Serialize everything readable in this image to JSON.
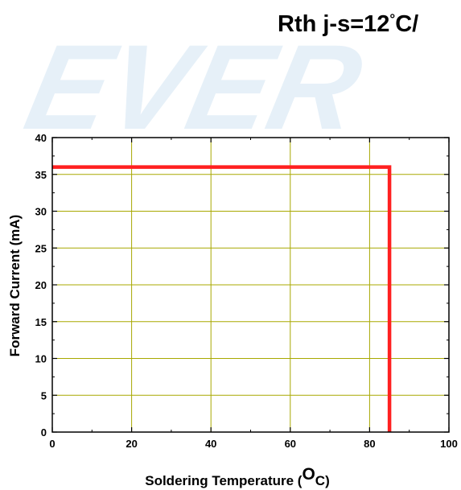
{
  "watermark": {
    "text": "EVER",
    "color": "#e6f0f8"
  },
  "header": {
    "title_main": "Rth j-s=12",
    "title_degree": "°",
    "title_tail": "C/"
  },
  "chart_data": {
    "type": "line",
    "title": "Rth j-s=12°C/",
    "xlabel_main": "Soldering Temperature (",
    "xlabel_sup": "O",
    "xlabel_tail": "C)",
    "ylabel": "Forward Current (mA)",
    "xlim": [
      0,
      100
    ],
    "ylim": [
      0,
      40
    ],
    "x_ticks": [
      0,
      20,
      40,
      60,
      80,
      100
    ],
    "y_ticks": [
      0,
      5,
      10,
      15,
      20,
      25,
      30,
      35,
      40
    ],
    "x_tick_labels": [
      "0",
      "20",
      "40",
      "60",
      "80",
      "100"
    ],
    "y_tick_labels": [
      "0",
      "5",
      "10",
      "15",
      "20",
      "25",
      "30",
      "35",
      "40"
    ],
    "grid": true,
    "grid_color": "#a8a800",
    "series": [
      {
        "x": [
          0,
          85,
          85
        ],
        "y": [
          36,
          36,
          0
        ],
        "color": "#ff2020"
      }
    ]
  }
}
